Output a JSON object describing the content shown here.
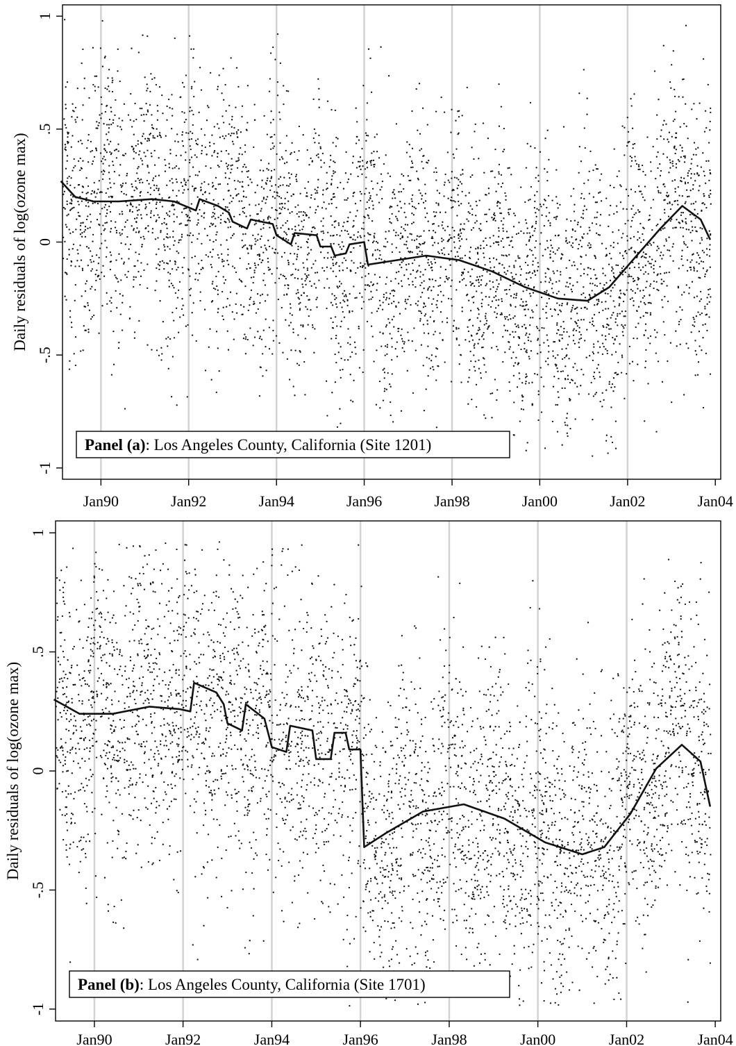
{
  "chart_data": [
    {
      "type": "scatter",
      "title": "",
      "ylabel": "Daily residuals of log(ozone max)",
      "xlabel": "",
      "xlim": [
        "1989-02-15",
        "2004-02-15"
      ],
      "ylim": [
        -1.0,
        1.0
      ],
      "ylim_plot": [
        -1.05,
        1.05
      ],
      "y_ticks": [
        1,
        0.5,
        0,
        -0.5,
        -1
      ],
      "y_tick_labels": [
        "1",
        ".5",
        "0",
        "-.5",
        "-1"
      ],
      "x_ticks": [
        "1990-01-01",
        "1992-01-01",
        "1994-01-01",
        "1996-01-01",
        "1998-01-01",
        "2000-01-01",
        "2002-01-01",
        "2004-01-01"
      ],
      "x_tick_labels": [
        "Jan90",
        "Jan92",
        "Jan94",
        "Jan96",
        "Jan98",
        "Jan00",
        "Jan02",
        "Jan04"
      ],
      "vertical_gridlines": [
        "1990-01-01",
        "1992-01-01",
        "1994-01-01",
        "1996-01-01",
        "1998-01-01",
        "2000-01-01",
        "2002-01-01"
      ],
      "panel_label": {
        "bold": "Panel (a)",
        "rest": ": Los Angeles County, California (Site 1201)"
      },
      "series": [
        {
          "kind": "scatter",
          "description_of_points": "dense cloud of daily residuals",
          "point_count_approx": 4300,
          "spread_sd_approx": 0.3
        },
        {
          "kind": "fitted-line",
          "points": [
            [
              "1989-02-01",
              0.27
            ],
            [
              "1989-06-01",
              0.2
            ],
            [
              "1989-11-01",
              0.18
            ],
            [
              "1990-06-01",
              0.18
            ],
            [
              "1991-03-01",
              0.19
            ],
            [
              "1991-09-01",
              0.18
            ],
            [
              "1992-01-15",
              0.15
            ],
            [
              "1992-03-01",
              0.14
            ],
            [
              "1992-04-01",
              0.19
            ],
            [
              "1992-09-01",
              0.16
            ],
            [
              "1992-12-01",
              0.13
            ],
            [
              "1993-01-01",
              0.09
            ],
            [
              "1993-05-01",
              0.06
            ],
            [
              "1993-06-01",
              0.1
            ],
            [
              "1993-12-01",
              0.08
            ],
            [
              "1994-01-01",
              0.03
            ],
            [
              "1994-05-01",
              -0.01
            ],
            [
              "1994-06-01",
              0.04
            ],
            [
              "1994-12-01",
              0.03
            ],
            [
              "1995-01-01",
              -0.02
            ],
            [
              "1995-04-01",
              -0.02
            ],
            [
              "1995-05-01",
              -0.06
            ],
            [
              "1995-08-01",
              -0.05
            ],
            [
              "1995-09-01",
              -0.01
            ],
            [
              "1996-01-01",
              0.0
            ],
            [
              "1996-02-01",
              -0.1
            ],
            [
              "1996-10-01",
              -0.08
            ],
            [
              "1997-06-01",
              -0.06
            ],
            [
              "1998-03-01",
              -0.08
            ],
            [
              "1998-12-01",
              -0.13
            ],
            [
              "1999-09-01",
              -0.2
            ],
            [
              "2000-06-01",
              -0.25
            ],
            [
              "2001-02-01",
              -0.26
            ],
            [
              "2001-08-01",
              -0.2
            ],
            [
              "2002-03-01",
              -0.07
            ],
            [
              "2002-10-01",
              0.06
            ],
            [
              "2003-04-01",
              0.16
            ],
            [
              "2003-09-01",
              0.1
            ],
            [
              "2003-11-20",
              0.01
            ]
          ]
        }
      ]
    },
    {
      "type": "scatter",
      "title": "",
      "ylabel": "Daily residuals of log(ozone max)",
      "xlabel": "",
      "xlim": [
        "1989-02-15",
        "2004-02-15"
      ],
      "ylim": [
        -1.0,
        1.0
      ],
      "ylim_plot": [
        -1.05,
        1.05
      ],
      "y_ticks": [
        1,
        0.5,
        0,
        -0.5,
        -1
      ],
      "y_tick_labels": [
        "1",
        ".5",
        "0",
        "-.5",
        "-1"
      ],
      "x_ticks": [
        "1990-01-01",
        "1992-01-01",
        "1994-01-01",
        "1996-01-01",
        "1998-01-01",
        "2000-01-01",
        "2002-01-01",
        "2004-01-01"
      ],
      "x_tick_labels": [
        "Jan90",
        "Jan92",
        "Jan94",
        "Jan96",
        "Jan98",
        "Jan00",
        "Jan02",
        "Jan04"
      ],
      "vertical_gridlines": [
        "1990-01-01",
        "1992-01-01",
        "1994-01-01",
        "1996-01-01",
        "1998-01-01",
        "2000-01-01",
        "2002-01-01"
      ],
      "panel_label": {
        "bold": "Panel (b)",
        "rest": ": Los Angeles County, California (Site 1701)"
      },
      "series": [
        {
          "kind": "scatter",
          "description_of_points": "dense cloud of daily residuals",
          "point_count_approx": 4300,
          "spread_sd_approx": 0.33
        },
        {
          "kind": "fitted-line",
          "points": [
            [
              "1989-02-01",
              0.3
            ],
            [
              "1989-09-01",
              0.24
            ],
            [
              "1990-06-01",
              0.24
            ],
            [
              "1991-04-01",
              0.27
            ],
            [
              "1991-12-01",
              0.26
            ],
            [
              "1992-03-01",
              0.25
            ],
            [
              "1992-04-01",
              0.37
            ],
            [
              "1992-10-01",
              0.33
            ],
            [
              "1992-12-01",
              0.28
            ],
            [
              "1993-01-01",
              0.2
            ],
            [
              "1993-05-01",
              0.17
            ],
            [
              "1993-06-01",
              0.28
            ],
            [
              "1993-11-01",
              0.22
            ],
            [
              "1994-01-01",
              0.1
            ],
            [
              "1994-05-01",
              0.08
            ],
            [
              "1994-06-01",
              0.19
            ],
            [
              "1994-12-01",
              0.17
            ],
            [
              "1995-01-01",
              0.05
            ],
            [
              "1995-05-01",
              0.05
            ],
            [
              "1995-06-01",
              0.16
            ],
            [
              "1995-09-01",
              0.16
            ],
            [
              "1995-10-01",
              0.09
            ],
            [
              "1996-01-01",
              0.09
            ],
            [
              "1996-02-01",
              -0.32
            ],
            [
              "1996-08-01",
              -0.26
            ],
            [
              "1997-06-01",
              -0.17
            ],
            [
              "1998-05-01",
              -0.14
            ],
            [
              "1999-04-01",
              -0.2
            ],
            [
              "2000-03-01",
              -0.3
            ],
            [
              "2001-01-01",
              -0.35
            ],
            [
              "2001-07-01",
              -0.32
            ],
            [
              "2002-02-01",
              -0.18
            ],
            [
              "2002-09-01",
              0.01
            ],
            [
              "2003-04-01",
              0.11
            ],
            [
              "2003-09-01",
              0.04
            ],
            [
              "2003-11-20",
              -0.15
            ]
          ]
        }
      ]
    }
  ]
}
